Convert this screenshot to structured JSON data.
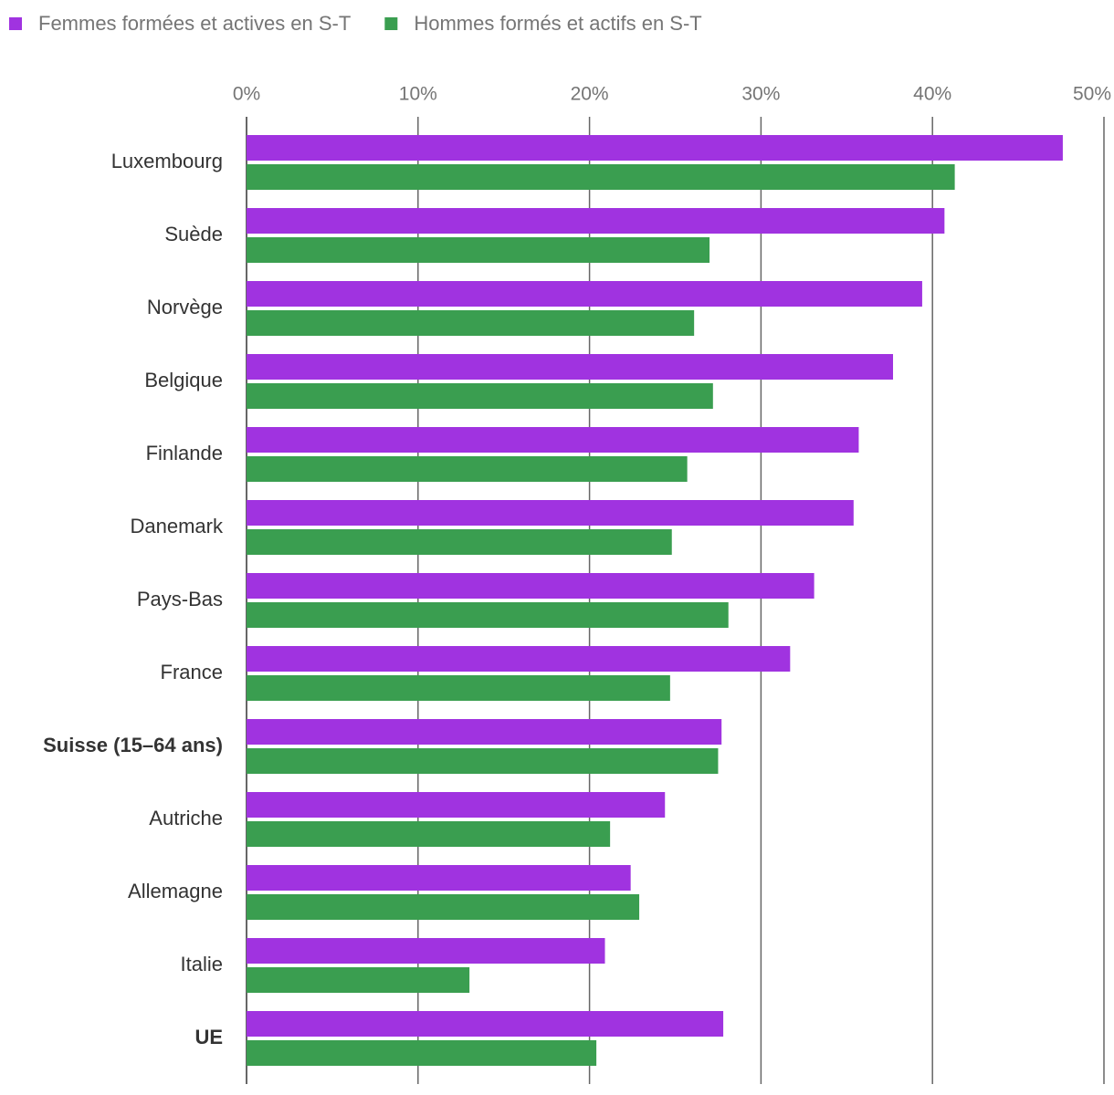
{
  "chart_data": {
    "type": "hbar",
    "categories": [
      "Luxembourg",
      "Suède",
      "Norvège",
      "Belgique",
      "Finlande",
      "Danemark",
      "Pays-Bas",
      "France",
      "Suisse (15–64 ans)",
      "Autriche",
      "Allemagne",
      "Italie",
      "UE"
    ],
    "series": [
      {
        "name": "Femmes formées et actives en S-T",
        "color": "#a033e0",
        "values": [
          47.6,
          40.7,
          39.4,
          37.7,
          35.7,
          35.4,
          33.1,
          31.7,
          27.7,
          24.4,
          22.4,
          20.9,
          27.8
        ]
      },
      {
        "name": "Hommes formés et actifs en S-T",
        "color": "#3a9e50",
        "values": [
          41.3,
          27.0,
          26.1,
          27.2,
          25.7,
          24.8,
          28.1,
          24.7,
          27.5,
          21.2,
          22.9,
          13.0,
          20.4
        ]
      }
    ],
    "xlim": [
      0,
      50
    ],
    "xticks": [
      {
        "value": 0,
        "label": "0%"
      },
      {
        "value": 10,
        "label": "10%"
      },
      {
        "value": 20,
        "label": "20%"
      },
      {
        "value": 30,
        "label": "30%"
      },
      {
        "value": 40,
        "label": "40%"
      },
      {
        "value": 50,
        "label": "50%"
      }
    ],
    "grid": true,
    "legend": "top-left"
  }
}
